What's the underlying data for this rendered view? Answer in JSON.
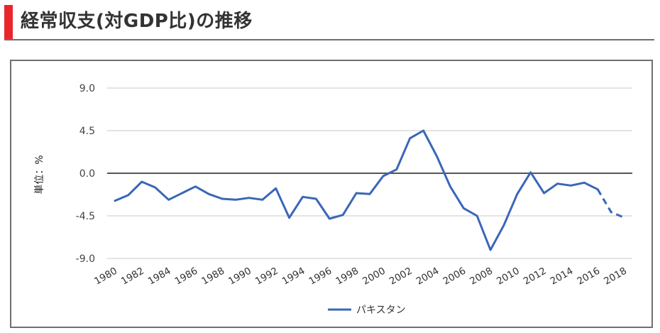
{
  "header": {
    "title": "経常収支(対GDP比)の推移",
    "accent_color": "#e8262c"
  },
  "chart_data": {
    "type": "line",
    "title": "経常収支(対GDP比)の推移",
    "xlabel": "",
    "ylabel": "単位：%",
    "ylim": [
      -9.0,
      9.0
    ],
    "yticks": [
      "9.0",
      "4.5",
      "0.0",
      "-4.5",
      "-9.0"
    ],
    "ytick_values": [
      9.0,
      4.5,
      0.0,
      -4.5,
      -9.0
    ],
    "xticks": [
      "1980",
      "1982",
      "1984",
      "1986",
      "1988",
      "1990",
      "1992",
      "1994",
      "1996",
      "1998",
      "2000",
      "2002",
      "2004",
      "2006",
      "2008",
      "2010",
      "2012",
      "2014",
      "2016",
      "2018"
    ],
    "grid": true,
    "legend_position": "bottom",
    "x": [
      1980,
      1981,
      1982,
      1983,
      1984,
      1985,
      1986,
      1987,
      1988,
      1989,
      1990,
      1991,
      1992,
      1993,
      1994,
      1995,
      1996,
      1997,
      1998,
      1999,
      2000,
      2001,
      2002,
      2003,
      2004,
      2005,
      2006,
      2007,
      2008,
      2009,
      2010,
      2011,
      2012,
      2013,
      2014,
      2015,
      2016,
      2017,
      2018
    ],
    "series": [
      {
        "name": "パキスタン",
        "color": "#3a66b8",
        "values": [
          -2.9,
          -2.3,
          -0.9,
          -1.5,
          -2.8,
          -2.1,
          -1.4,
          -2.2,
          -2.7,
          -2.8,
          -2.6,
          -2.8,
          -1.6,
          -4.7,
          -2.5,
          -2.7,
          -4.8,
          -4.4,
          -2.1,
          -2.2,
          -0.3,
          0.4,
          3.7,
          4.5,
          1.8,
          -1.4,
          -3.7,
          -4.5,
          -8.1,
          -5.5,
          -2.2,
          0.1,
          -2.1,
          -1.1,
          -1.3,
          -1.0,
          -1.7,
          -4.1,
          -4.7
        ],
        "dashed_from": 2016
      }
    ]
  }
}
